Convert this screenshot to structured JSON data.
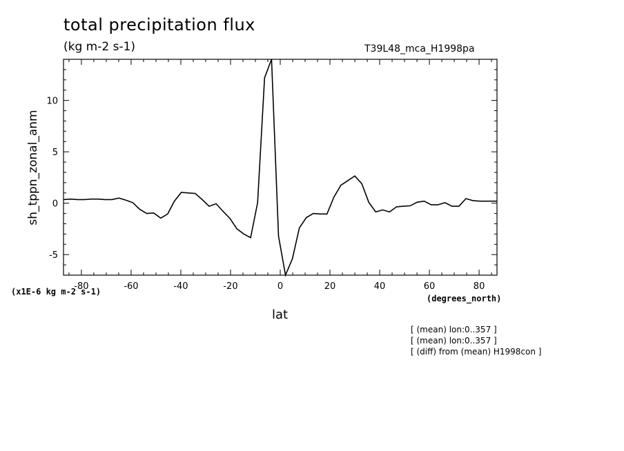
{
  "chart_data": {
    "type": "line",
    "title": "total precipitation flux",
    "subtitle": "(kg m-2 s-1)",
    "run_id": "T39L48_mca_H1998pa",
    "xlabel": "lat",
    "xunits": "(degrees_north)",
    "ylabel": "sh_tppn_zonal_anm",
    "yunits": "(x1E-6 kg m-2 s-1)",
    "xlim": [
      -87.2,
      87.2
    ],
    "ylim": [
      -7,
      14
    ],
    "xticks": [
      -80,
      -60,
      -40,
      -20,
      0,
      20,
      40,
      60,
      80
    ],
    "yticks": [
      -5,
      0,
      5,
      10
    ],
    "grid": false,
    "series": [
      {
        "x": [
          -87.2,
          -84.4,
          -81.6,
          -78.8,
          -76.0,
          -73.3,
          -70.5,
          -67.7,
          -64.9,
          -62.1,
          -59.3,
          -56.5,
          -53.7,
          -50.9,
          -48.1,
          -45.3,
          -42.6,
          -39.8,
          -37.0,
          -34.2,
          -31.4,
          -28.6,
          -25.8,
          -23.0,
          -20.2,
          -17.4,
          -14.6,
          -11.9,
          -9.1,
          -6.3,
          -3.5,
          -0.7,
          2.1,
          4.9,
          7.7,
          10.5,
          13.3,
          16.0,
          18.8,
          21.6,
          24.4,
          27.2,
          30.0,
          32.8,
          35.6,
          38.4,
          41.2,
          44.0,
          46.8,
          49.5,
          52.3,
          55.1,
          57.9,
          60.7,
          63.5,
          66.3,
          69.1,
          71.9,
          74.7,
          77.5,
          80.3,
          83.0,
          85.8,
          87.2
        ],
        "y": [
          0.35,
          0.4,
          0.35,
          0.35,
          0.4,
          0.4,
          0.35,
          0.35,
          0.5,
          0.3,
          0.05,
          -0.6,
          -1.0,
          -0.95,
          -1.45,
          -1.05,
          0.2,
          1.05,
          1.0,
          0.95,
          0.35,
          -0.3,
          -0.05,
          -0.8,
          -1.5,
          -2.5,
          -3.0,
          -3.35,
          0.05,
          12.2,
          14.0,
          -3.2,
          -7.2,
          -5.4,
          -2.4,
          -1.4,
          -1.0,
          -1.05,
          -1.05,
          0.6,
          1.75,
          2.2,
          2.65,
          1.9,
          0.1,
          -0.85,
          -0.65,
          -0.85,
          -0.35,
          -0.3,
          -0.25,
          0.1,
          0.2,
          -0.15,
          -0.15,
          0.05,
          -0.3,
          -0.3,
          0.45,
          0.25,
          0.2,
          0.2,
          0.2,
          0.2
        ]
      }
    ]
  },
  "notes": [
    "[ (mean) lon:0..357 ]",
    "[ (mean) lon:0..357 ]",
    "[ (diff) from (mean) H1998con ]"
  ]
}
